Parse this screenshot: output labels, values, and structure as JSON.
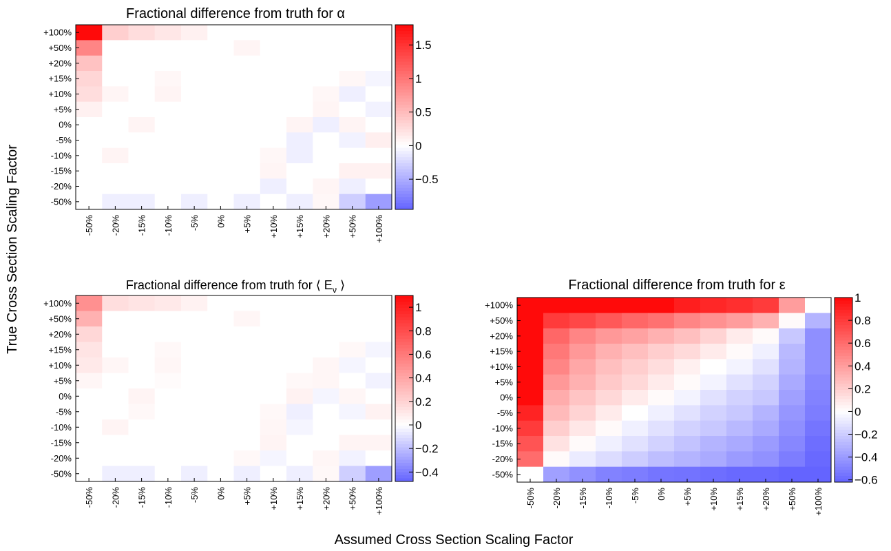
{
  "figure": {
    "ylabel": "True Cross Section Scaling Factor",
    "xlabel": "Assumed Cross Section Scaling Factor"
  },
  "chart_data": [
    {
      "type": "heatmap",
      "title": "Fractional difference from truth for α",
      "x_categories": [
        "-50%",
        "-20%",
        "-15%",
        "-10%",
        "-5%",
        "0%",
        "+5%",
        "+10%",
        "+15%",
        "+20%",
        "+50%",
        "+100%"
      ],
      "y_categories": [
        "+100%",
        "+50%",
        "+20%",
        "+15%",
        "+10%",
        "+5%",
        "0%",
        "-5%",
        "-10%",
        "-15%",
        "-20%",
        "-50%"
      ],
      "zlim": [
        -0.95,
        1.8
      ],
      "colorbar_ticks": [
        -0.5,
        0,
        0.5,
        1,
        1.5
      ],
      "colorbar_tick_labels": [
        "−0.5",
        "0",
        "0.5",
        "1",
        "1.5"
      ],
      "values": [
        [
          1.8,
          0.35,
          0.25,
          0.18,
          0.1,
          0,
          0,
          0,
          0,
          0,
          0,
          0
        ],
        [
          0.9,
          0,
          0,
          0,
          0,
          0,
          0.07,
          0,
          0,
          0,
          0,
          0
        ],
        [
          0.45,
          0,
          0,
          0,
          0,
          0,
          0,
          0,
          0,
          0,
          0,
          0
        ],
        [
          0.3,
          0,
          0,
          0.06,
          0,
          0,
          0,
          0,
          0,
          0,
          0.06,
          -0.06
        ],
        [
          0.25,
          0.07,
          0,
          0.08,
          0,
          0,
          0,
          0,
          0,
          0.06,
          -0.1,
          0
        ],
        [
          0.1,
          0,
          0,
          0,
          0,
          0,
          0,
          0,
          0,
          0.07,
          0,
          -0.08
        ],
        [
          0,
          0,
          0.08,
          0,
          0,
          0,
          0,
          0,
          0.08,
          -0.1,
          0.08,
          0
        ],
        [
          0,
          0,
          0,
          0,
          0,
          0,
          0,
          0,
          -0.1,
          0,
          -0.08,
          0.12
        ],
        [
          0,
          0.08,
          0,
          0,
          0,
          0,
          0,
          0.06,
          -0.1,
          0,
          0,
          0
        ],
        [
          0,
          0,
          0,
          0,
          0,
          0,
          0,
          0.07,
          0,
          0,
          0.1,
          0.1
        ],
        [
          0,
          0,
          0,
          0,
          0,
          0,
          0,
          -0.1,
          0,
          0.07,
          -0.1,
          0
        ],
        [
          0,
          -0.1,
          -0.1,
          0,
          -0.1,
          0,
          -0.1,
          0,
          -0.1,
          0.06,
          -0.3,
          -0.6
        ]
      ]
    },
    {
      "type": "heatmap",
      "title": "Fractional difference from truth for ⟨ E",
      "title_sub": "ν",
      "title_end": " ⟩",
      "x_categories": [
        "-50%",
        "-20%",
        "-15%",
        "-10%",
        "-5%",
        "0%",
        "+5%",
        "+10%",
        "+15%",
        "+20%",
        "+50%",
        "+100%"
      ],
      "y_categories": [
        "+100%",
        "+50%",
        "+20%",
        "+15%",
        "+10%",
        "+5%",
        "0%",
        "-5%",
        "-10%",
        "-15%",
        "-20%",
        "-50%"
      ],
      "zlim": [
        -0.48,
        1.1
      ],
      "colorbar_ticks": [
        -0.4,
        -0.2,
        0,
        0.2,
        0.4,
        0.6,
        0.8,
        1
      ],
      "colorbar_tick_labels": [
        "−0.4",
        "−0.2",
        "0",
        "0.2",
        "0.4",
        "0.6",
        "0.8",
        "1"
      ],
      "values": [
        [
          0.5,
          0.15,
          0.12,
          0.1,
          0.06,
          0,
          0,
          0,
          0,
          0,
          0,
          0
        ],
        [
          0.35,
          0,
          0,
          0,
          0,
          0,
          0.04,
          0,
          0,
          0,
          0,
          0
        ],
        [
          0.18,
          0,
          0,
          0,
          0,
          0,
          0,
          0,
          0,
          0,
          0,
          0
        ],
        [
          0.12,
          0,
          0,
          0.03,
          0,
          0,
          0,
          0,
          0,
          0,
          0.03,
          -0.03
        ],
        [
          0.1,
          0.04,
          0,
          0.04,
          0,
          0,
          0,
          0,
          0,
          0.04,
          -0.03,
          0
        ],
        [
          0.04,
          0,
          0,
          0.02,
          0,
          0,
          0,
          0,
          0.03,
          0.04,
          0,
          -0.04
        ],
        [
          0,
          0,
          0.05,
          0,
          0,
          0,
          0,
          0,
          0.06,
          -0.03,
          0.04,
          0
        ],
        [
          0,
          0,
          0.03,
          0,
          0,
          0,
          0,
          0.03,
          -0.05,
          0,
          -0.03,
          0.06
        ],
        [
          0,
          0.05,
          0,
          0,
          0,
          0,
          0,
          0.04,
          -0.03,
          0,
          0,
          0
        ],
        [
          0,
          0,
          0,
          0,
          0,
          0,
          0,
          0.05,
          0,
          0,
          0.05,
          0.05
        ],
        [
          0,
          0,
          0,
          0,
          0,
          0,
          0.03,
          -0.03,
          0,
          0.04,
          -0.04,
          0
        ],
        [
          0,
          -0.05,
          -0.05,
          0,
          -0.05,
          0,
          -0.05,
          0,
          -0.05,
          0.03,
          -0.15,
          -0.3
        ]
      ]
    },
    {
      "type": "heatmap",
      "title": "Fractional difference from truth for ε",
      "x_categories": [
        "-50%",
        "-20%",
        "-15%",
        "-10%",
        "-5%",
        "0%",
        "+5%",
        "+10%",
        "+15%",
        "+20%",
        "+50%",
        "+100%"
      ],
      "y_categories": [
        "+100%",
        "+50%",
        "+20%",
        "+15%",
        "+10%",
        "+5%",
        "0%",
        "-5%",
        "-10%",
        "-15%",
        "-20%",
        "-50%"
      ],
      "zlim": [
        -0.62,
        1.0
      ],
      "colorbar_ticks": [
        -0.6,
        -0.4,
        -0.2,
        0,
        0.2,
        0.4,
        0.6,
        0.8,
        1
      ],
      "colorbar_tick_labels": [
        "−0.6",
        "−0.4",
        "−0.2",
        "0",
        "0.2",
        "0.4",
        "0.6",
        "0.8",
        "1"
      ],
      "values": [
        [
          1.0,
          1.0,
          1.0,
          1.0,
          1.0,
          1.0,
          0.92,
          0.88,
          0.85,
          0.8,
          0.4,
          0.0
        ],
        [
          1.0,
          0.8,
          0.75,
          0.68,
          0.62,
          0.58,
          0.5,
          0.45,
          0.4,
          0.32,
          0.02,
          -0.3
        ],
        [
          1.0,
          0.62,
          0.5,
          0.42,
          0.38,
          0.32,
          0.26,
          0.18,
          0.08,
          0.02,
          -0.22,
          -0.45
        ],
        [
          1.0,
          0.55,
          0.42,
          0.32,
          0.26,
          0.2,
          0.15,
          0.08,
          0.02,
          -0.06,
          -0.28,
          -0.45
        ],
        [
          1.0,
          0.5,
          0.36,
          0.26,
          0.2,
          0.14,
          0.06,
          0.0,
          -0.05,
          -0.12,
          -0.3,
          -0.45
        ],
        [
          1.0,
          0.42,
          0.32,
          0.22,
          0.16,
          0.08,
          0.02,
          -0.05,
          -0.12,
          -0.18,
          -0.34,
          -0.48
        ],
        [
          1.0,
          0.34,
          0.24,
          0.16,
          0.08,
          0.02,
          -0.05,
          -0.12,
          -0.18,
          -0.22,
          -0.38,
          -0.5
        ],
        [
          0.9,
          0.28,
          0.18,
          0.08,
          0.0,
          -0.06,
          -0.12,
          -0.18,
          -0.22,
          -0.3,
          -0.42,
          -0.52
        ],
        [
          0.8,
          0.2,
          0.1,
          0.02,
          -0.06,
          -0.12,
          -0.18,
          -0.22,
          -0.28,
          -0.34,
          -0.45,
          -0.55
        ],
        [
          0.7,
          0.12,
          0.02,
          -0.06,
          -0.12,
          -0.18,
          -0.24,
          -0.3,
          -0.34,
          -0.4,
          -0.48,
          -0.58
        ],
        [
          0.6,
          0.02,
          -0.08,
          -0.14,
          -0.2,
          -0.26,
          -0.3,
          -0.34,
          -0.4,
          -0.44,
          -0.52,
          -0.6
        ],
        [
          0.0,
          -0.38,
          -0.44,
          -0.5,
          -0.52,
          -0.55,
          -0.56,
          -0.58,
          -0.6,
          -0.6,
          -0.62,
          -0.62
        ]
      ]
    }
  ]
}
